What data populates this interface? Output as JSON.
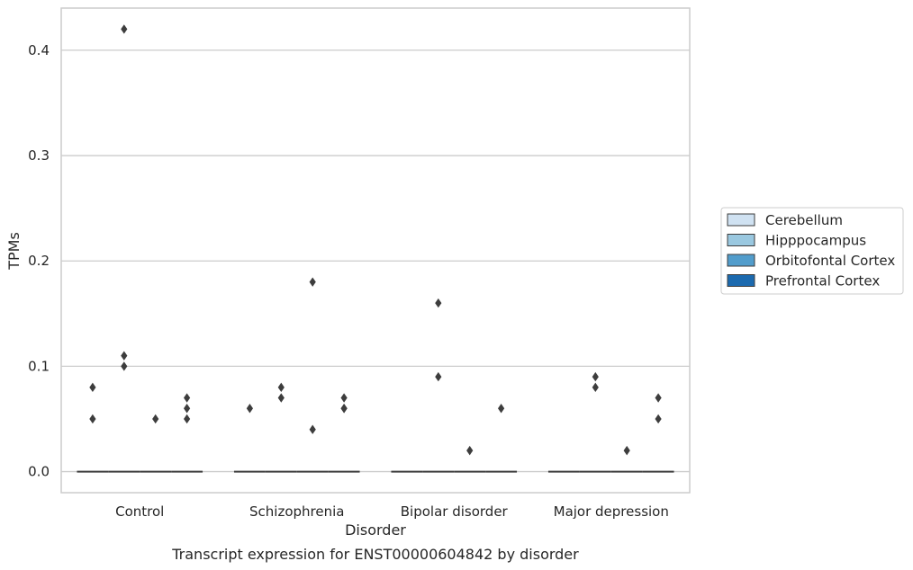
{
  "chart_data": {
    "type": "boxplot",
    "title": "",
    "caption": "Transcript expression for ENST00000604842 by disorder",
    "xlabel": "Disorder",
    "ylabel": "TPMs",
    "ylim": [
      -0.02,
      0.44
    ],
    "yticks": [
      0.0,
      0.1,
      0.2,
      0.3,
      0.4
    ],
    "ytick_labels": [
      "0.0",
      "0.1",
      "0.2",
      "0.3",
      "0.4"
    ],
    "categories": [
      "Control",
      "Schizophrenia",
      "Bipolar disorder",
      "Major depression"
    ],
    "grid": "horizontal",
    "legend_position": "right",
    "series": [
      {
        "name": "Cerebellum",
        "color": "#d0e2f2",
        "median": [
          0,
          0,
          0,
          0
        ],
        "outliers": [
          [
            0.05,
            0.08
          ],
          [
            0.06
          ],
          [],
          []
        ]
      },
      {
        "name": "Hipppocampus",
        "color": "#9ac8e0",
        "median": [
          0,
          0,
          0,
          0
        ],
        "outliers": [
          [
            0.1,
            0.11,
            0.42
          ],
          [
            0.07,
            0.08
          ],
          [
            0.09,
            0.16
          ],
          [
            0.08,
            0.09
          ]
        ]
      },
      {
        "name": "Orbitofontal Cortex",
        "color": "#529dcc",
        "median": [
          0,
          0,
          0,
          0
        ],
        "outliers": [
          [
            0.05
          ],
          [
            0.04,
            0.18
          ],
          [
            0.02
          ],
          [
            0.02
          ]
        ]
      },
      {
        "name": "Prefrontal Cortex",
        "color": "#1c6aaf",
        "median": [
          0,
          0,
          0,
          0
        ],
        "outliers": [
          [
            0.05,
            0.06,
            0.07
          ],
          [
            0.06,
            0.06,
            0.07
          ],
          [
            0.06
          ],
          [
            0.05,
            0.07
          ]
        ]
      }
    ]
  }
}
